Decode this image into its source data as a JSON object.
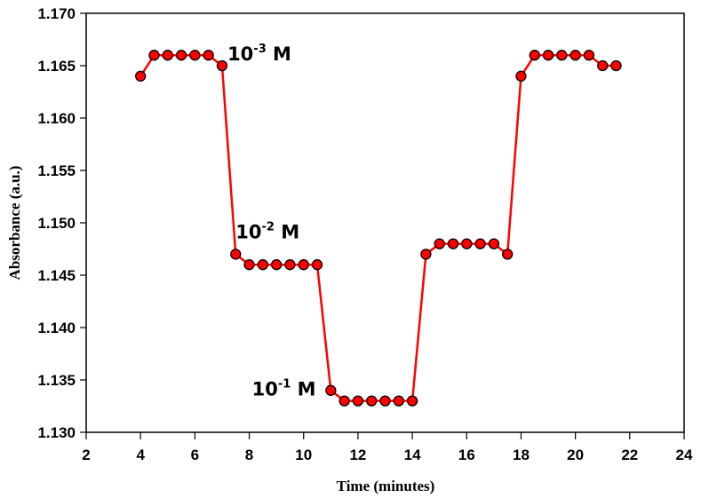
{
  "chart_data": {
    "type": "line",
    "title": "",
    "xlabel": "Time (minutes)",
    "ylabel": "Absorbance (a.u.)",
    "xlim": [
      2,
      24
    ],
    "ylim": [
      1.13,
      1.17
    ],
    "xticks": [
      2,
      4,
      6,
      8,
      10,
      12,
      14,
      16,
      18,
      20,
      22,
      24
    ],
    "yticks": [
      1.13,
      1.135,
      1.14,
      1.145,
      1.15,
      1.155,
      1.16,
      1.165,
      1.17
    ],
    "ytick_labels": [
      "1.130",
      "1.135",
      "1.140",
      "1.145",
      "1.150",
      "1.155",
      "1.160",
      "1.165",
      "1.170"
    ],
    "grid": false,
    "legend": null,
    "series": [
      {
        "name": "Absorbance",
        "color": "#ff0000",
        "marker_fill": "#ff0000",
        "marker_edge": "#000000",
        "x": [
          4.0,
          4.5,
          5.0,
          5.5,
          6.0,
          6.5,
          7.0,
          7.5,
          8.0,
          8.5,
          9.0,
          9.5,
          10.0,
          10.5,
          11.0,
          11.5,
          12.0,
          12.5,
          13.0,
          13.5,
          14.0,
          14.5,
          15.0,
          15.5,
          16.0,
          16.5,
          17.0,
          17.5,
          18.0,
          18.5,
          19.0,
          19.5,
          20.0,
          20.5,
          21.0,
          21.5
        ],
        "y": [
          1.164,
          1.166,
          1.166,
          1.166,
          1.166,
          1.166,
          1.165,
          1.147,
          1.146,
          1.146,
          1.146,
          1.146,
          1.146,
          1.146,
          1.134,
          1.133,
          1.133,
          1.133,
          1.133,
          1.133,
          1.133,
          1.147,
          1.148,
          1.148,
          1.148,
          1.148,
          1.148,
          1.147,
          1.164,
          1.166,
          1.166,
          1.166,
          1.166,
          1.166,
          1.165,
          1.165
        ]
      }
    ],
    "annotations": [
      {
        "base": "10",
        "exp": "-3",
        "unit": " M",
        "x": 7.2,
        "y": 1.1655
      },
      {
        "base": "10",
        "exp": "-2",
        "unit": " M",
        "x": 7.5,
        "y": 1.1485
      },
      {
        "base": "10",
        "exp": "-1",
        "unit": " M",
        "x": 8.1,
        "y": 1.1335
      }
    ]
  }
}
